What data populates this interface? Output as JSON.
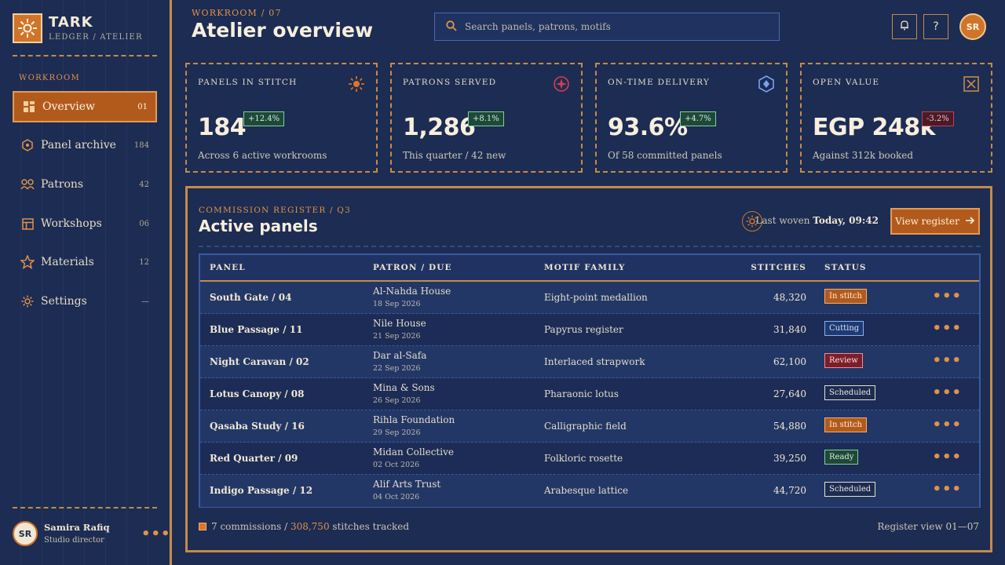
{
  "brand": {
    "name": "TARK",
    "sub": "LEDGER / ATELIER"
  },
  "sidebar": {
    "section": "WORKROOM",
    "items": [
      {
        "label": "Overview",
        "count": "01",
        "icon": "grid-icon",
        "active": true
      },
      {
        "label": "Panel archive",
        "count": "184",
        "icon": "hexagon-icon"
      },
      {
        "label": "Patrons",
        "count": "42",
        "icon": "people-icon"
      },
      {
        "label": "Workshops",
        "count": "06",
        "icon": "layout-icon"
      },
      {
        "label": "Materials",
        "count": "12",
        "icon": "star-icon"
      },
      {
        "label": "Settings",
        "count": "—",
        "icon": "gear-icon"
      }
    ]
  },
  "user": {
    "initials": "SR",
    "name": "Samira Rafiq",
    "role": "Studio director"
  },
  "header": {
    "crumb": "WORKROOM / 07",
    "title": "Atelier overview",
    "search_placeholder": "Search panels, patrons, motifs",
    "avatar": "SR"
  },
  "stats": [
    {
      "title": "PANELS IN STITCH",
      "value": "184",
      "delta": "+12.4%",
      "trend": "up",
      "sub": "Across 6 active workrooms",
      "icon": "sun-icon"
    },
    {
      "title": "PATRONS SERVED",
      "value": "1,286",
      "delta": "+8.1%",
      "trend": "up",
      "sub": "This quarter / 42 new",
      "icon": "compass-icon"
    },
    {
      "title": "ON-TIME DELIVERY",
      "value": "93.6%",
      "delta": "+4.7%",
      "trend": "up",
      "sub": "Of 58 committed panels",
      "icon": "hex-diamond-icon"
    },
    {
      "title": "OPEN VALUE",
      "value": "EGP 248k",
      "delta": "-3.2%",
      "trend": "down",
      "sub": "Against 312k booked",
      "icon": "box-x-icon"
    }
  ],
  "register": {
    "crumb": "COMMISSION REGISTER / Q3",
    "title": "Active panels",
    "woven_label": "Last woven",
    "woven_time": "Today, 09:42",
    "button": "View register",
    "columns": [
      "PANEL",
      "PATRON / DUE",
      "MOTIF FAMILY",
      "STITCHES",
      "STATUS"
    ],
    "rows": [
      {
        "panel": "South Gate / 04",
        "patron": "Al-Nahda House",
        "due": "18 Sep 2026",
        "motif": "Eight-point medallion",
        "stitches": "48,320",
        "status": "In stitch",
        "status_class": "st-institch"
      },
      {
        "panel": "Blue Passage / 11",
        "patron": "Nile House",
        "due": "21 Sep 2026",
        "motif": "Papyrus register",
        "stitches": "31,840",
        "status": "Cutting",
        "status_class": "st-cutting"
      },
      {
        "panel": "Night Caravan / 02",
        "patron": "Dar al-Safa",
        "due": "22 Sep 2026",
        "motif": "Interlaced strapwork",
        "stitches": "62,100",
        "status": "Review",
        "status_class": "st-review"
      },
      {
        "panel": "Lotus Canopy / 08",
        "patron": "Mina & Sons",
        "due": "26 Sep 2026",
        "motif": "Pharaonic lotus",
        "stitches": "27,640",
        "status": "Scheduled",
        "status_class": "st-scheduled"
      },
      {
        "panel": "Qasaba Study / 16",
        "patron": "Rihla Foundation",
        "due": "29 Sep 2026",
        "motif": "Calligraphic field",
        "stitches": "54,880",
        "status": "In stitch",
        "status_class": "st-institch"
      },
      {
        "panel": "Red Quarter / 09",
        "patron": "Midan Collective",
        "due": "02 Oct 2026",
        "motif": "Folkloric rosette",
        "stitches": "39,250",
        "status": "Ready",
        "status_class": "st-ready"
      },
      {
        "panel": "Indigo Passage / 12",
        "patron": "Alif Arts Trust",
        "due": "04 Oct 2026",
        "motif": "Arabesque lattice",
        "stitches": "44,720",
        "status": "Scheduled",
        "status_class": "st-scheduled"
      }
    ],
    "footer_count": "7 commissions /",
    "footer_total": "308,750",
    "footer_suffix": "stitches tracked",
    "footer_right": "Register view 01—07"
  },
  "colors": {
    "accent": "#d0742a",
    "bg": "#1c2c52",
    "border": "#c68a4a",
    "up": "#7ed19a",
    "down": "#c04050"
  }
}
